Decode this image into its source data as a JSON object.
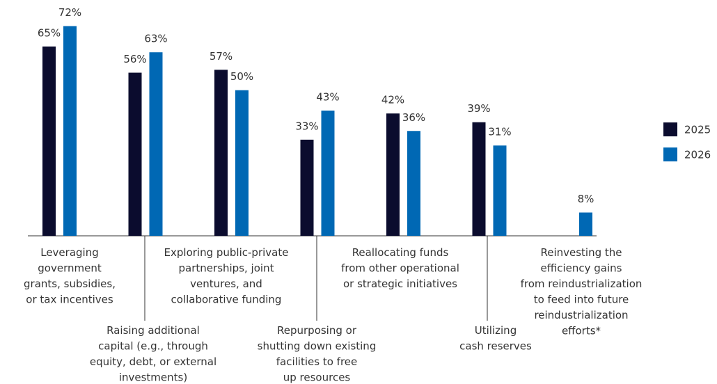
{
  "chart_data": {
    "type": "bar",
    "categories": [
      "Leveraging\ngovernment\ngrants, subsidies,\nor tax incentives",
      "Raising additional\ncapital (e.g., through\nequity, debt, or external\ninvestments)",
      "Exploring public-private\npartnerships, joint\nventures, and\ncollaborative funding",
      "Repurposing or\nshutting down existing\nfacilities to free\nup resources",
      "Reallocating funds\nfrom other operational\nor strategic initiatives",
      "Utilizing\ncash reserves",
      "Reinvesting the\nefficiency gains\nfrom reindustrialization\nto feed into future\nreindustrialization\nefforts*"
    ],
    "series": [
      {
        "name": "2025",
        "color": "#0b0c2e",
        "values": [
          65,
          56,
          57,
          33,
          42,
          39,
          null
        ],
        "value_labels": [
          "65%",
          "56%",
          "57%",
          "33%",
          "42%",
          "39%",
          null
        ]
      },
      {
        "name": "2026",
        "color": "#0068b4",
        "values": [
          72,
          63,
          50,
          43,
          36,
          31,
          8
        ],
        "value_labels": [
          "72%",
          "63%",
          "50%",
          "43%",
          "36%",
          "31%",
          "8%"
        ]
      }
    ],
    "ylim": [
      0,
      80
    ],
    "legend": "right"
  }
}
